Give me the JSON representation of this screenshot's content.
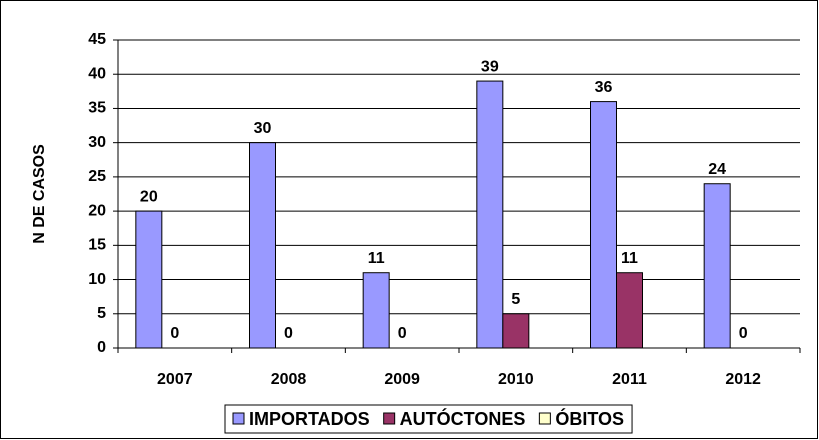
{
  "chart_data": {
    "type": "bar",
    "y_label": "N DE CASOS",
    "categories": [
      "2007",
      "2008",
      "2009",
      "2010",
      "2011",
      "2012"
    ],
    "series": [
      {
        "name": "IMPORTADOS",
        "color": "#9999ff",
        "values": [
          20,
          30,
          11,
          39,
          36,
          24
        ],
        "value_labels": [
          "20",
          "30",
          "11",
          "39",
          "36",
          "24"
        ]
      },
      {
        "name": "AUTÓCTONES",
        "color": "#993366",
        "values": [
          0,
          0,
          0,
          5,
          11,
          0
        ],
        "value_labels": [
          "0",
          "0",
          "0",
          "5",
          "11",
          "0"
        ]
      },
      {
        "name": "ÓBITOS",
        "color": "#ffffcc",
        "values": [
          0,
          0,
          0,
          0,
          0,
          0
        ]
      }
    ],
    "ylim": [
      0,
      45
    ],
    "yticks": [
      0,
      5,
      10,
      15,
      20,
      25,
      30,
      35,
      40,
      45
    ],
    "grid": true,
    "legend": "bottom"
  }
}
